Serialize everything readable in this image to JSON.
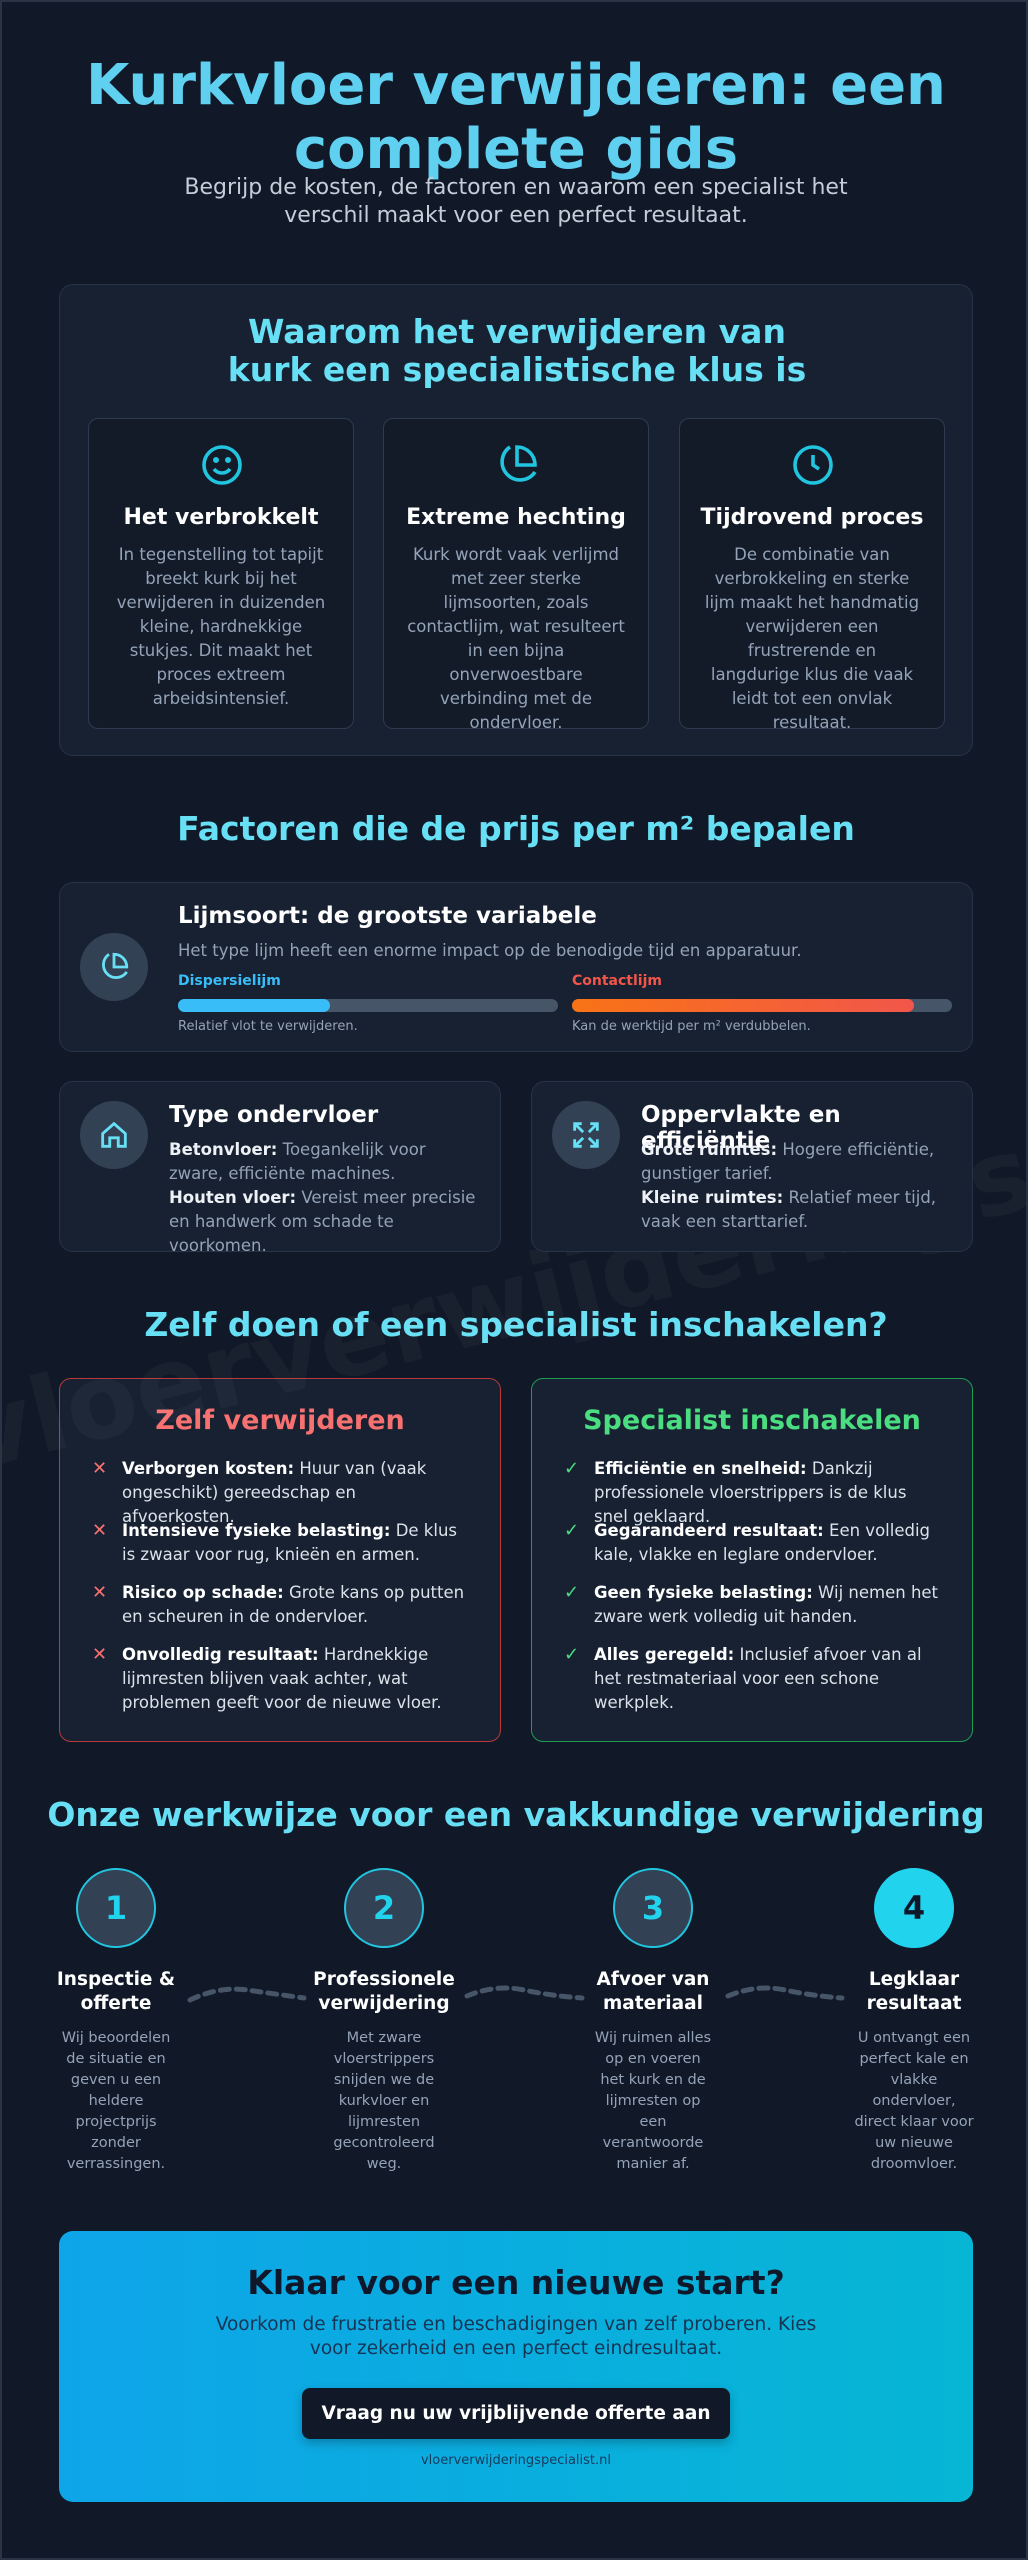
{
  "header": {
    "title": "Kurkvloer verwijderen: een complete gids",
    "subtitle": "Begrijp de kosten, de factoren en waarom een specialist het verschil maakt voor een perfect resultaat."
  },
  "watermark": "vloerverwijderingspecialist",
  "why": {
    "title": "Waarom het verwijderen van kurk een specialistische klus is",
    "cards": [
      {
        "title": "Het verbrokkelt",
        "text": "In tegenstelling tot tapijt breekt kurk bij het verwijderen in duizenden kleine, hardnekkige stukjes. Dit maakt het proces extreem arbeidsintensief."
      },
      {
        "title": "Extreme hechting",
        "text": "Kurk wordt vaak verlijmd met zeer sterke lijmsoorten, zoals contactlijm, wat resulteert in een bijna onverwoestbare verbinding met de ondervloer."
      },
      {
        "title": "Tijdrovend proces",
        "text": "De combinatie van verbrokkeling en sterke lijm maakt het handmatig verwijderen een frustrerende en langdurige klus die vaak leidt tot een onvlak resultaat."
      }
    ]
  },
  "factors": {
    "title": "Factoren die de prijs per m² bepalen",
    "glue": {
      "title": "Lijmsoort: de grootste variabele",
      "text": "Het type lijm heeft een enorme impact op de benodigde tijd en apparatuur.",
      "bars": [
        {
          "name": "Dispersielijm",
          "value": 40,
          "note": "Relatief vlot te verwijderen.",
          "color": "#38bdf8"
        },
        {
          "name": "Contactlijm",
          "value": 90,
          "note": "Kan de werktijd per m² verdubbelen.",
          "color": "#f2564a"
        }
      ]
    },
    "cards": [
      {
        "title": "Type ondervloer",
        "items": [
          {
            "label": "Betonvloer:",
            "text": "Toegankelijk voor zware, efficiënte machines."
          },
          {
            "label": "Houten vloer:",
            "text": "Vereist meer precisie en handwerk om schade te voorkomen."
          }
        ]
      },
      {
        "title": "Oppervlakte en efficiëntie",
        "items": [
          {
            "label": "Grote ruimtes:",
            "text": "Hogere efficiëntie, gunstiger tarief."
          },
          {
            "label": "Kleine ruimtes:",
            "text": "Relatief meer tijd, vaak een starttarief."
          }
        ]
      }
    ]
  },
  "compare": {
    "title": "Zelf doen of een specialist inschakelen?",
    "diy": {
      "title": "Zelf verwijderen",
      "items": [
        {
          "label": "Verborgen kosten:",
          "text": "Huur van (vaak ongeschikt) gereedschap en afvoerkosten."
        },
        {
          "label": "Intensieve fysieke belasting:",
          "text": "De klus is zwaar voor rug, knieën en armen."
        },
        {
          "label": "Risico op schade:",
          "text": "Grote kans op putten en scheuren in de ondervloer."
        },
        {
          "label": "Onvolledig resultaat:",
          "text": "Hardnekkige lijmresten blijven vaak achter, wat problemen geeft voor de nieuwe vloer."
        }
      ]
    },
    "pro": {
      "title": "Specialist inschakelen",
      "items": [
        {
          "label": "Efficiëntie en snelheid:",
          "text": "Dankzij professionele vloerstrippers is de klus snel geklaard."
        },
        {
          "label": "Gegarandeerd resultaat:",
          "text": "Een volledig kale, vlakke en leglare ondervloer."
        },
        {
          "label": "Geen fysieke belasting:",
          "text": "Wij nemen het zware werk volledig uit handen."
        },
        {
          "label": "Alles geregeld:",
          "text": "Inclusief afvoer van al het restmateriaal voor een schone werkplek."
        }
      ]
    }
  },
  "process": {
    "title": "Onze werkwijze voor een vakkundige verwijdering",
    "steps": [
      {
        "number": 1,
        "title": "Inspectie & offerte",
        "text": "Wij beoordelen de situatie en geven u een heldere projectprijs zonder verrassingen."
      },
      {
        "number": 2,
        "title": "Professionele verwijdering",
        "text": "Met zware vloerstrippers snijden we de kurkvloer en lijmresten gecontroleerd weg."
      },
      {
        "number": 3,
        "title": "Afvoer van materiaal",
        "text": "Wij ruimen alles op en voeren het kurk en de lijmresten op een verantwoorde manier af."
      },
      {
        "number": 4,
        "title": "Legklaar resultaat",
        "text": "U ontvangt een perfect kale en vlakke ondervloer, direct klaar voor uw nieuwe droomvloer."
      }
    ]
  },
  "cta": {
    "title": "Klaar voor een nieuwe start?",
    "text": "Voorkom de frustratie en beschadigingen van zelf proberen. Kies voor zekerheid en een perfect eindresultaat.",
    "button": "Vraag nu uw vrijblijvende offerte aan",
    "url": "vloerverwijderingspecialist.nl"
  }
}
